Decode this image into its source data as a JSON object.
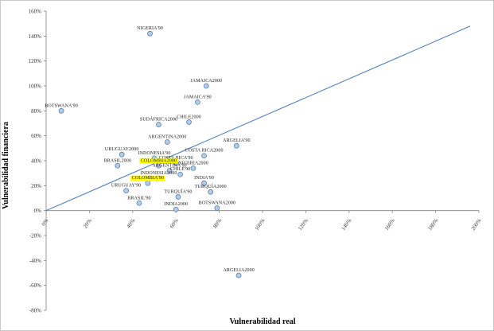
{
  "chart_data": {
    "type": "scatter",
    "title": "",
    "xlabel": "Vulnerabilidad real",
    "ylabel": "Vulnerabilidad financiera",
    "xlim": [
      0,
      200
    ],
    "ylim": [
      -80,
      160
    ],
    "x_ticks": [
      "0%",
      "20%",
      "40%",
      "60%",
      "80%",
      "100%",
      "120%",
      "140%",
      "160%",
      "180%",
      "200%"
    ],
    "y_ticks": [
      "-80%",
      "-60%",
      "-40%",
      "-20%",
      "0%",
      "20%",
      "40%",
      "60%",
      "80%",
      "100%",
      "120%",
      "140%",
      "160%"
    ],
    "grid": false,
    "legend": "none",
    "marker_fill": "#b4cbe4",
    "marker_stroke": "#5a84b4",
    "line_color": "#4f81bd",
    "highlight_color": "#ffff00",
    "axis_color": "#7f7f7f",
    "trendline": {
      "x1": 0,
      "y1": 0,
      "x2": 196,
      "y2": 148
    },
    "points": [
      {
        "label": "NIGERIA'90",
        "x": 48,
        "y": 142,
        "highlight": false
      },
      {
        "label": "JAMAICA2000",
        "x": 74,
        "y": 100,
        "highlight": false
      },
      {
        "label": "JAMAICA'90",
        "x": 70,
        "y": 87,
        "highlight": false
      },
      {
        "label": "BOTSWANA'90",
        "x": 7,
        "y": 80,
        "highlight": false
      },
      {
        "label": "CHILE2000",
        "x": 66,
        "y": 71,
        "highlight": false
      },
      {
        "label": "SUDÁFRICA2000",
        "x": 52,
        "y": 69,
        "highlight": false
      },
      {
        "label": "ARGENTINA2000",
        "x": 56,
        "y": 55,
        "highlight": false
      },
      {
        "label": "ARGELIA'90",
        "x": 88,
        "y": 52,
        "highlight": false
      },
      {
        "label": "URUGUAY2000",
        "x": 35,
        "y": 45,
        "highlight": false
      },
      {
        "label": "COSTA RICA2000",
        "x": 73,
        "y": 44,
        "highlight": false
      },
      {
        "label": "INDONESIA'90",
        "x": 50,
        "y": 42,
        "highlight": false
      },
      {
        "label": "COSTA RICA'90",
        "x": 60,
        "y": 38,
        "highlight": false
      },
      {
        "label": "BRASIL2000",
        "x": 33,
        "y": 36,
        "highlight": false
      },
      {
        "label": "COLOMBIA2000",
        "x": 52,
        "y": 36,
        "highlight": true
      },
      {
        "label": "NIGERIA2000",
        "x": 68,
        "y": 34,
        "highlight": false
      },
      {
        "label": "ARGENTINA'90",
        "x": 57,
        "y": 32,
        "highlight": false
      },
      {
        "label": "CHILE'90",
        "x": 62,
        "y": 29,
        "highlight": false
      },
      {
        "label": "INDONESIA2000",
        "x": 52,
        "y": 26,
        "highlight": false
      },
      {
        "label": "COLOMBIA'90",
        "x": 47,
        "y": 22,
        "highlight": true
      },
      {
        "label": "INDIA'90",
        "x": 73,
        "y": 22,
        "highlight": false
      },
      {
        "label": "URUGUAY'90",
        "x": 37,
        "y": 16,
        "highlight": false
      },
      {
        "label": "TURQUÍA2000",
        "x": 76,
        "y": 15,
        "highlight": false
      },
      {
        "label": "TURQUÍA'90",
        "x": 61,
        "y": 11,
        "highlight": false
      },
      {
        "label": "BRASIL'90",
        "x": 43,
        "y": 6,
        "highlight": false
      },
      {
        "label": "BOTSWANA2000",
        "x": 79,
        "y": 2,
        "highlight": false
      },
      {
        "label": "INDIA2000",
        "x": 60,
        "y": 1,
        "highlight": false
      },
      {
        "label": "ARGELIA2000",
        "x": 89,
        "y": -52,
        "highlight": false
      }
    ]
  }
}
